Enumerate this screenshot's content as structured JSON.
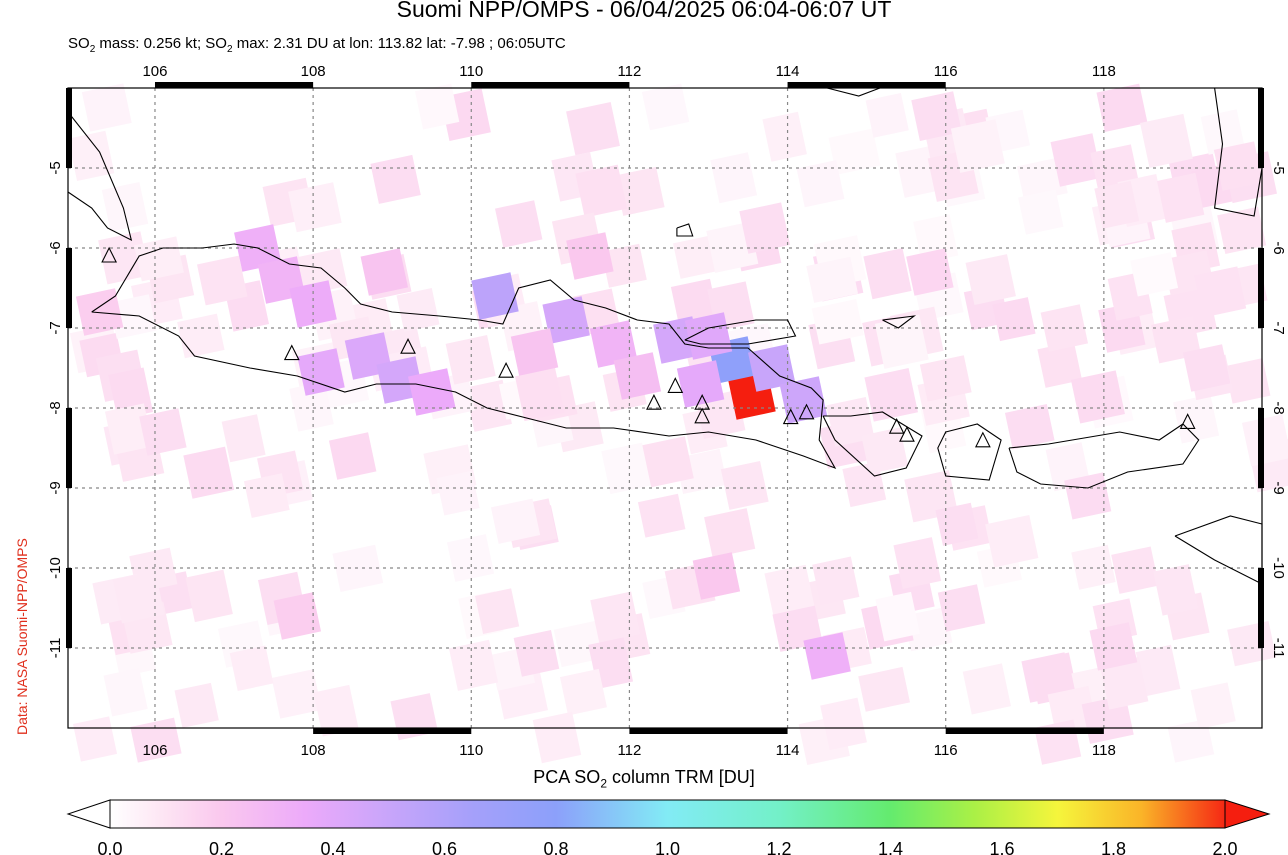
{
  "title": "Suomi NPP/OMPS - 06/04/2025 06:04-06:07 UT",
  "subtitle_parts": [
    "SO",
    "2",
    " mass: 0.256 kt; SO",
    "2",
    " max: 2.31 DU at lon: 113.82 lat: -7.98 ; 06:05UTC"
  ],
  "credit": "Data: NASA Suomi-NPP/OMPS",
  "colorbar": {
    "label_parts": [
      "PCA SO",
      "2",
      " column TRM [DU]"
    ],
    "ticks": [
      "0.0",
      "0.2",
      "0.4",
      "0.6",
      "0.8",
      "1.0",
      "1.2",
      "1.4",
      "1.6",
      "1.8",
      "2.0"
    ],
    "range": [
      0.0,
      2.0
    ]
  },
  "map": {
    "lon_range": [
      104.9,
      120.0
    ],
    "lat_range": [
      -12.0,
      -4.0
    ],
    "lon_ticks": [
      "106",
      "108",
      "110",
      "112",
      "114",
      "116",
      "118"
    ],
    "lat_ticks": [
      "-5",
      "-6",
      "-7",
      "-8",
      "-9",
      "-10",
      "-11"
    ],
    "gridlines": "dotted",
    "volcanoes": [
      {
        "lon": 105.42,
        "lat": -6.1
      },
      {
        "lon": 107.73,
        "lat": -7.32
      },
      {
        "lon": 109.2,
        "lat": -7.24
      },
      {
        "lon": 110.44,
        "lat": -7.54
      },
      {
        "lon": 112.31,
        "lat": -7.94
      },
      {
        "lon": 112.58,
        "lat": -7.73
      },
      {
        "lon": 112.92,
        "lat": -7.94
      },
      {
        "lon": 112.92,
        "lat": -8.11
      },
      {
        "lon": 114.04,
        "lat": -8.12
      },
      {
        "lon": 114.24,
        "lat": -8.06
      },
      {
        "lon": 115.38,
        "lat": -8.24
      },
      {
        "lon": 115.51,
        "lat": -8.34
      },
      {
        "lon": 116.47,
        "lat": -8.41
      },
      {
        "lon": 119.06,
        "lat": -8.18
      }
    ],
    "so2_cells": [
      {
        "lon": 113.55,
        "lat": -7.85,
        "value": 2.31
      },
      {
        "lon": 113.3,
        "lat": -7.4,
        "value": 0.78
      },
      {
        "lon": 113.8,
        "lat": -7.5,
        "value": 0.5
      },
      {
        "lon": 114.2,
        "lat": -7.9,
        "value": 0.48
      },
      {
        "lon": 112.6,
        "lat": -7.15,
        "value": 0.45
      },
      {
        "lon": 113.0,
        "lat": -7.1,
        "value": 0.4
      },
      {
        "lon": 112.9,
        "lat": -7.7,
        "value": 0.38
      },
      {
        "lon": 110.3,
        "lat": -6.6,
        "value": 0.55
      },
      {
        "lon": 111.2,
        "lat": -6.9,
        "value": 0.45
      },
      {
        "lon": 108.7,
        "lat": -7.35,
        "value": 0.42
      },
      {
        "lon": 108.1,
        "lat": -7.55,
        "value": 0.38
      },
      {
        "lon": 109.1,
        "lat": -7.65,
        "value": 0.45
      },
      {
        "lon": 109.5,
        "lat": -7.8,
        "value": 0.35
      },
      {
        "lon": 107.3,
        "lat": -6.0,
        "value": 0.32
      },
      {
        "lon": 107.6,
        "lat": -6.4,
        "value": 0.3
      },
      {
        "lon": 108.0,
        "lat": -6.7,
        "value": 0.34
      },
      {
        "lon": 108.9,
        "lat": -6.3,
        "value": 0.22
      },
      {
        "lon": 111.8,
        "lat": -7.2,
        "value": 0.3
      },
      {
        "lon": 112.1,
        "lat": -7.6,
        "value": 0.25
      },
      {
        "lon": 110.8,
        "lat": -7.3,
        "value": 0.22
      },
      {
        "lon": 111.5,
        "lat": -6.1,
        "value": 0.2
      },
      {
        "lon": 110.6,
        "lat": -5.7,
        "value": 0.12
      },
      {
        "lon": 114.5,
        "lat": -11.1,
        "value": 0.32
      },
      {
        "lon": 113.1,
        "lat": -10.1,
        "value": 0.2
      },
      {
        "lon": 107.8,
        "lat": -10.6,
        "value": 0.18
      },
      {
        "lon": 106.1,
        "lat": -8.3,
        "value": 0.12
      },
      {
        "lon": 115.8,
        "lat": -6.3,
        "value": 0.15
      },
      {
        "lon": 117.5,
        "lat": -7.0,
        "value": 0.1
      },
      {
        "lon": 119.3,
        "lat": -7.5,
        "value": 0.12
      },
      {
        "lon": 105.3,
        "lat": -6.8,
        "value": 0.18
      },
      {
        "lon": 108.5,
        "lat": -8.6,
        "value": 0.14
      },
      {
        "lon": 116.2,
        "lat": -10.5,
        "value": 0.12
      }
    ]
  }
}
